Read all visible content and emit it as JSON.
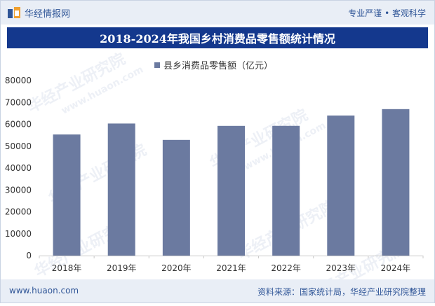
{
  "header": {
    "brand_name": "华经情报网",
    "slogan": "专业严谨 • 客观科学"
  },
  "footer": {
    "url": "www.huaon.com",
    "source": "资料来源：国家统计局，华经产业研究院整理"
  },
  "watermark": {
    "cn": "华经产业研究院",
    "en": "www.huaon.com"
  },
  "colors": {
    "bar": "#6b7aa0",
    "title_bg": "#14388d",
    "brand": "#2f5597"
  },
  "chart_data": {
    "type": "bar",
    "title": "2018-2024年我国乡村消费品零售额统计情况",
    "categories": [
      "2018年",
      "2019年",
      "2020年",
      "2021年",
      "2022年",
      "2023年",
      "2024年"
    ],
    "series": [
      {
        "name": "县乡消费品零售额（亿元）",
        "values": [
          55350,
          60350,
          52860,
          59265,
          59285,
          64005,
          66935
        ]
      }
    ],
    "ylim": [
      0,
      80000
    ],
    "yticks": [
      0,
      10000,
      20000,
      30000,
      40000,
      50000,
      60000,
      70000,
      80000
    ],
    "grid": false,
    "legend": "top-center"
  }
}
